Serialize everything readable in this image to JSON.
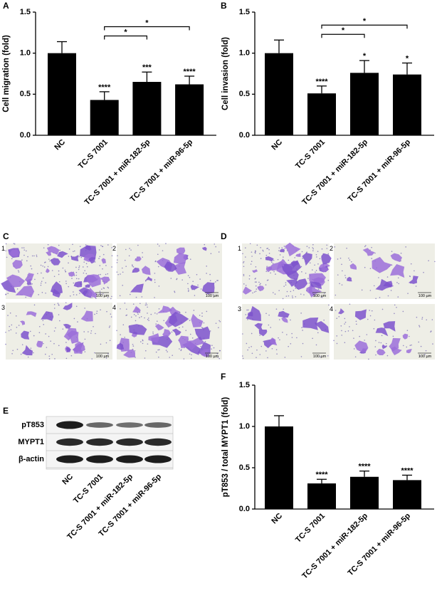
{
  "chart_data": [
    {
      "type": "bar",
      "panel": "A",
      "ylabel": "Cell migration (fold)",
      "categories": [
        "NC",
        "TC-S 7001",
        "TC-S 7001 + miR-182-5p",
        "TC-S 7001 + miR-96-5p"
      ],
      "values": [
        1.0,
        0.43,
        0.65,
        0.62
      ],
      "errors": [
        0.14,
        0.1,
        0.12,
        0.1
      ],
      "annotations": [
        null,
        "****",
        "***",
        "****"
      ],
      "comparisons": [
        {
          "pair": [
            "TC-S 7001",
            "TC-S 7001 + miR-182-5p"
          ],
          "label": "*"
        },
        {
          "pair": [
            "TC-S 7001",
            "TC-S 7001 + miR-96-5p"
          ],
          "label": "*"
        }
      ],
      "color": "#000000",
      "ylim": [
        0,
        1.5
      ],
      "yticks": [
        {
          "value": 0,
          "label": "0.0"
        },
        0.5,
        {
          "value": 1,
          "label": "1.0"
        },
        1.5
      ]
    },
    {
      "type": "bar",
      "panel": "B",
      "ylabel": "Cell invasion (fold)",
      "categories": [
        "NC",
        "TC-S 7001",
        "TC-S 7001 + miR-182-5p",
        "TC-S 7001 + miR-96-5p"
      ],
      "values": [
        1.0,
        0.51,
        0.76,
        0.74
      ],
      "errors": [
        0.16,
        0.09,
        0.15,
        0.14
      ],
      "annotations": [
        null,
        "****",
        "*",
        "*"
      ],
      "comparisons": [
        {
          "pair": [
            "TC-S 7001",
            "TC-S 7001 + miR-182-5p"
          ],
          "label": "*"
        },
        {
          "pair": [
            "TC-S 7001",
            "TC-S 7001 + miR-96-5p"
          ],
          "label": "*"
        }
      ],
      "color": "#000000",
      "ylim": [
        0,
        1.5
      ],
      "yticks": [
        {
          "value": 0,
          "label": "0.0"
        },
        0.5,
        {
          "value": 1,
          "label": "1.0"
        },
        1.5
      ]
    },
    {
      "type": "bar",
      "panel": "F",
      "ylabel": "pT853 / total MYPT1 (fold)",
      "categories": [
        "NC",
        "TC-S 7001",
        "TC-S 7001 + miR-182-5p",
        "TC-S 7001 + miR-96-5p"
      ],
      "values": [
        1.0,
        0.31,
        0.39,
        0.35
      ],
      "errors": [
        0.13,
        0.05,
        0.07,
        0.06
      ],
      "annotations": [
        null,
        "****",
        "****",
        "****"
      ],
      "comparisons": [],
      "color": "#000000",
      "ylim": [
        0,
        1.5
      ],
      "yticks": [
        {
          "value": 0,
          "label": "0.0"
        },
        0.5,
        {
          "value": 1,
          "label": "1.0"
        },
        1.5
      ]
    }
  ],
  "micrographs": [
    {
      "panel": "C",
      "labels": [
        "1",
        "2",
        "3",
        "4"
      ],
      "scale": "100 µm"
    },
    {
      "panel": "D",
      "labels": [
        "1",
        "2",
        "3",
        "4"
      ],
      "scale": "100 µm"
    }
  ],
  "blot": {
    "panel": "E",
    "bands": [
      "pT853",
      "MYPT1",
      "β-actin"
    ],
    "lanes": [
      "NC",
      "TC-S 7001",
      "TC-S 7001 + miR-182-5p",
      "TC-S 7001 + miR-96-5p"
    ]
  }
}
